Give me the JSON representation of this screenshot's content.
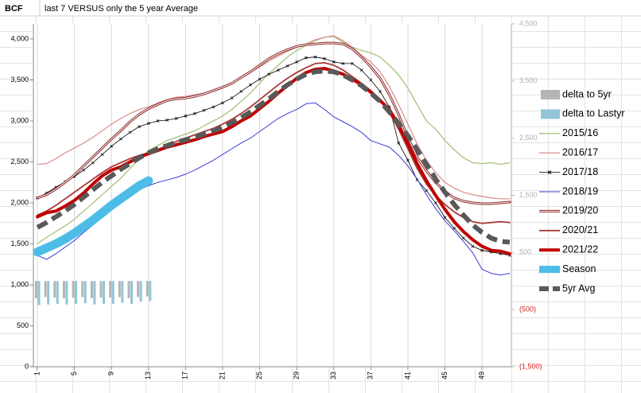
{
  "chart_data": {
    "type": "line",
    "title": "last 7 VERSUS only the 5 year Average",
    "ylabel": "BCF",
    "x": [
      1,
      2,
      3,
      4,
      5,
      6,
      7,
      8,
      9,
      10,
      11,
      12,
      13,
      14,
      15,
      16,
      17,
      18,
      19,
      20,
      21,
      22,
      23,
      24,
      25,
      26,
      27,
      28,
      29,
      30,
      31,
      32,
      33,
      34,
      35,
      36,
      37,
      38,
      39,
      40,
      41,
      42,
      43,
      44,
      45,
      46,
      47,
      48,
      49,
      50,
      51,
      52
    ],
    "xlim": [
      1,
      52
    ],
    "xticks": [
      1,
      5,
      9,
      13,
      17,
      21,
      25,
      29,
      33,
      37,
      41,
      45,
      49
    ],
    "ylim": [
      0,
      4000
    ],
    "yticks": [
      0,
      500,
      {
        "value": 1000,
        "label": "1,000"
      },
      {
        "value": 1500,
        "label": "1,500"
      },
      {
        "value": 2000,
        "label": "2,000"
      },
      {
        "value": 2500,
        "label": "2,500"
      },
      {
        "value": 3000,
        "label": "3,000"
      },
      {
        "value": 3500,
        "label": "3,500"
      },
      {
        "value": 4000,
        "label": "4,000"
      }
    ],
    "y2lim": [
      -1500,
      4500
    ],
    "y2ticks": [
      {
        "value": -1500,
        "label": "(1,500)"
      },
      {
        "value": -500,
        "label": "(500)"
      },
      500,
      {
        "value": 1500,
        "label": "1,500"
      },
      {
        "value": 2500,
        "label": "2,500"
      },
      {
        "value": 3500,
        "label": "3,500"
      },
      {
        "value": 4500,
        "label": "4,500"
      }
    ],
    "grid": true,
    "legend": "right",
    "series": [
      {
        "name": "delta to 5yr",
        "type": "bar",
        "axis": "y2",
        "color": "#b4b4b4",
        "values": [
          -300,
          -280,
          -290,
          -300,
          -290,
          -280,
          -300,
          -290,
          -290,
          -280,
          -300,
          -280,
          -270,
          null,
          null,
          null,
          null,
          null,
          null,
          null,
          null,
          null,
          null,
          null,
          null,
          null,
          null,
          null,
          null,
          null,
          null,
          null,
          null,
          null,
          null,
          null,
          null,
          null,
          null,
          null,
          null,
          null,
          null,
          null,
          null,
          null,
          null,
          null,
          null,
          null,
          null,
          null
        ]
      },
      {
        "name": "delta to Lastyr",
        "type": "bar",
        "axis": "y2",
        "color": "#92c5d8",
        "values": [
          -420,
          -410,
          -400,
          -410,
          -400,
          -390,
          -410,
          -400,
          -400,
          -380,
          -400,
          -360,
          -350,
          null,
          null,
          null,
          null,
          null,
          null,
          null,
          null,
          null,
          null,
          null,
          null,
          null,
          null,
          null,
          null,
          null,
          null,
          null,
          null,
          null,
          null,
          null,
          null,
          null,
          null,
          null,
          null,
          null,
          null,
          null,
          null,
          null,
          null,
          null,
          null,
          null,
          null,
          null
        ]
      },
      {
        "name": "2015/16",
        "color": "#a6c47c",
        "width": 1.3,
        "values": [
          1500,
          1580,
          1650,
          1720,
          1800,
          1900,
          2000,
          2100,
          2200,
          2300,
          2420,
          2540,
          2640,
          2700,
          2760,
          2800,
          2840,
          2880,
          2940,
          3000,
          3060,
          3140,
          3240,
          3340,
          3460,
          3580,
          3680,
          3780,
          3860,
          3920,
          3980,
          4020,
          4030,
          3960,
          3900,
          3860,
          3830,
          3780,
          3680,
          3560,
          3400,
          3200,
          3000,
          2900,
          2760,
          2650,
          2550,
          2490,
          2480,
          2490,
          2470,
          2490
        ]
      },
      {
        "name": "2016/17",
        "color": "#d99594",
        "width": 1.3,
        "values": [
          2470,
          2480,
          2540,
          2610,
          2670,
          2730,
          2800,
          2880,
          2960,
          3030,
          3090,
          3140,
          3170,
          3220,
          3260,
          3290,
          3300,
          3320,
          3340,
          3380,
          3420,
          3460,
          3520,
          3590,
          3660,
          3730,
          3790,
          3850,
          3900,
          3940,
          3990,
          4020,
          4040,
          3980,
          3900,
          3800,
          3720,
          3600,
          3420,
          3200,
          2960,
          2720,
          2520,
          2370,
          2250,
          2180,
          2130,
          2100,
          2080,
          2060,
          2050,
          2050
        ]
      },
      {
        "name": "2017/18",
        "color": "#000000",
        "width": 0.8,
        "marker": "x",
        "values": [
          2060,
          2120,
          2190,
          2260,
          2320,
          2400,
          2490,
          2590,
          2690,
          2780,
          2860,
          2930,
          2970,
          3000,
          3010,
          3030,
          3060,
          3090,
          3130,
          3170,
          3220,
          3280,
          3360,
          3440,
          3510,
          3570,
          3620,
          3670,
          3720,
          3770,
          3780,
          3760,
          3720,
          3700,
          3700,
          3620,
          3500,
          3360,
          3170,
          2730,
          2520,
          2280,
          2150,
          2000,
          1820,
          1690,
          1570,
          1470,
          1420,
          1400,
          1380,
          1360
        ]
      },
      {
        "name": "2018/19",
        "color": "#3a3ad6",
        "width": 1,
        "values": [
          1360,
          1310,
          1380,
          1460,
          1540,
          1640,
          1730,
          1820,
          1920,
          2010,
          2090,
          2160,
          2210,
          2250,
          2280,
          2310,
          2350,
          2400,
          2460,
          2520,
          2590,
          2660,
          2730,
          2790,
          2870,
          2950,
          3030,
          3090,
          3140,
          3210,
          3220,
          3140,
          3050,
          2990,
          2930,
          2860,
          2760,
          2720,
          2680,
          2580,
          2450,
          2290,
          2100,
          1930,
          1780,
          1660,
          1530,
          1390,
          1190,
          1140,
          1120,
          1140
        ]
      },
      {
        "name": "2019/20",
        "color": "#8b2525",
        "width": 3,
        "double": true,
        "values": [
          2060,
          2100,
          2170,
          2250,
          2340,
          2450,
          2560,
          2670,
          2780,
          2880,
          2990,
          3080,
          3150,
          3200,
          3250,
          3270,
          3280,
          3300,
          3330,
          3370,
          3410,
          3460,
          3530,
          3600,
          3680,
          3760,
          3820,
          3870,
          3910,
          3930,
          3940,
          3950,
          3950,
          3940,
          3880,
          3780,
          3660,
          3520,
          3320,
          3080,
          2800,
          2560,
          2390,
          2250,
          2140,
          2060,
          2020,
          2000,
          1990,
          1990,
          2000,
          2010
        ]
      },
      {
        "name": "2020/21",
        "color": "#a83a3a",
        "width": 1.8,
        "values": [
          1850,
          1900,
          1970,
          2050,
          2130,
          2210,
          2290,
          2370,
          2440,
          2490,
          2540,
          2580,
          2610,
          2650,
          2700,
          2750,
          2790,
          2830,
          2870,
          2910,
          2960,
          3020,
          3090,
          3170,
          3260,
          3350,
          3440,
          3520,
          3590,
          3650,
          3700,
          3710,
          3680,
          3620,
          3540,
          3460,
          3370,
          3260,
          3100,
          2900,
          2660,
          2420,
          2230,
          2090,
          1980,
          1890,
          1820,
          1770,
          1750,
          1760,
          1770,
          1760
        ]
      },
      {
        "name": "2021/22",
        "color": "#c00000",
        "width": 4,
        "values": [
          1830,
          1880,
          1900,
          1960,
          2030,
          2120,
          2230,
          2330,
          2400,
          2440,
          2500,
          2560,
          2600,
          2640,
          2680,
          2710,
          2740,
          2770,
          2810,
          2840,
          2870,
          2930,
          3000,
          3060,
          3150,
          3240,
          3340,
          3430,
          3520,
          3590,
          3630,
          3640,
          3610,
          3570,
          3510,
          3440,
          3350,
          3250,
          3140,
          2950,
          2720,
          2480,
          2270,
          2090,
          1920,
          1770,
          1650,
          1550,
          1470,
          1420,
          1410,
          1380
        ]
      },
      {
        "name": "Season",
        "color": "#4dbde8",
        "width": 11,
        "values": [
          1400,
          1450,
          1500,
          1560,
          1630,
          1710,
          1790,
          1880,
          1970,
          2050,
          2130,
          2210,
          2270,
          null,
          null,
          null,
          null,
          null,
          null,
          null,
          null,
          null,
          null,
          null,
          null,
          null,
          null,
          null,
          null,
          null,
          null,
          null,
          null,
          null,
          null,
          null,
          null,
          null,
          null,
          null,
          null,
          null,
          null,
          null,
          null,
          null,
          null,
          null,
          null,
          null,
          null,
          null
        ]
      },
      {
        "name": "5yr Avg",
        "color": "#595959",
        "width": 6,
        "dash": "14,7",
        "values": [
          1700,
          1760,
          1830,
          1900,
          1980,
          2070,
          2160,
          2250,
          2330,
          2410,
          2480,
          2550,
          2610,
          2660,
          2700,
          2740,
          2770,
          2800,
          2840,
          2880,
          2920,
          2980,
          3040,
          3110,
          3190,
          3270,
          3360,
          3440,
          3510,
          3570,
          3600,
          3610,
          3600,
          3560,
          3500,
          3430,
          3340,
          3240,
          3110,
          2970,
          2820,
          2650,
          2470,
          2290,
          2130,
          1980,
          1850,
          1730,
          1640,
          1570,
          1530,
          1520
        ]
      }
    ]
  }
}
